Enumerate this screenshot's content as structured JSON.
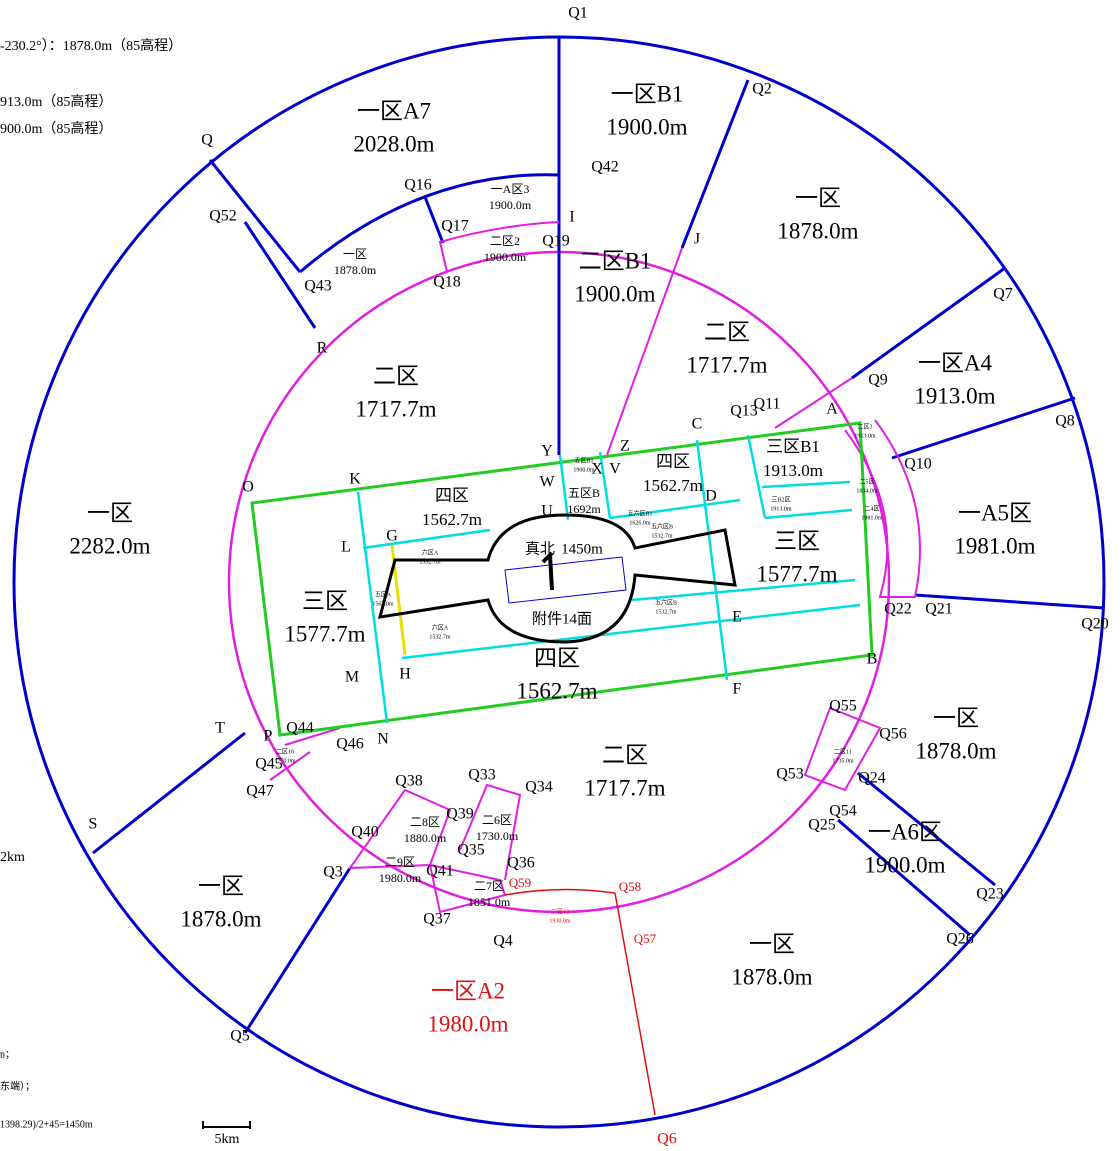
{
  "notes": [
    "-230.2°）：1878.0m（85高程）",
    "913.0m（85高程）",
    "900.0m（85高程）",
    "2km",
    "n；",
    "东端）；",
    "1398.29)/2+45=1450m"
  ],
  "scale_label": "5km",
  "points": [
    "Q1",
    "Q2",
    "Q7",
    "Q8",
    "Q10",
    "Q20",
    "Q21",
    "Q22",
    "Q23",
    "Q26",
    "Q24",
    "Q25",
    "Q54",
    "Q55",
    "Q56",
    "Q53",
    "Q6",
    "Q57",
    "Q58",
    "Q59",
    "Q4",
    "Q37",
    "Q36",
    "Q35",
    "Q41",
    "Q40",
    "Q3",
    "Q38",
    "Q39",
    "Q33",
    "Q34",
    "Q5",
    "S",
    "T",
    "Q45",
    "Q47",
    "Q46",
    "Q44",
    "P",
    "N",
    "M",
    "H",
    "G",
    "L",
    "K",
    "O",
    "R",
    "Q43",
    "Q52",
    "Q",
    "Q16",
    "Q17",
    "Q18",
    "Q19",
    "I",
    "Q42",
    "J",
    "Y",
    "W",
    "U",
    "Z",
    "X",
    "V",
    "C",
    "D",
    "E",
    "F",
    "B",
    "A",
    "Q11",
    "Q13",
    "Q9"
  ],
  "zones": [
    {
      "name": "一区A7",
      "height": "2028.0m"
    },
    {
      "name": "一区B1",
      "height": "1900.0m"
    },
    {
      "name": "一区",
      "height": "1878.0m"
    },
    {
      "name": "二区B1",
      "height": "1900.0m"
    },
    {
      "name": "二区",
      "height": "1717.7m"
    },
    {
      "name": "一区A4",
      "height": "1913.0m"
    },
    {
      "name": "二区",
      "height": "1717.7m"
    },
    {
      "name": "一区",
      "height": "2282.0m"
    },
    {
      "name": "一A5区",
      "height": "1981.0m"
    },
    {
      "name": "三区",
      "height": "1577.7m"
    },
    {
      "name": "三区",
      "height": "1577.7m"
    },
    {
      "name": "四区",
      "height": "1562.7m"
    },
    {
      "name": "四区",
      "height": "1562.7m"
    },
    {
      "name": "二区",
      "height": "1717.7m"
    },
    {
      "name": "一区",
      "height": "1878.0m"
    },
    {
      "name": "一A6区",
      "height": "1900.0m"
    },
    {
      "name": "一区",
      "height": "1878.0m"
    },
    {
      "name": "一区A2",
      "height": "1980.0m"
    },
    {
      "name": "一区",
      "height": "1878.0m"
    },
    {
      "name": "三区B1",
      "height": "1913.0m"
    },
    {
      "name": "四区",
      "height": "1562.7m"
    }
  ],
  "small_zones": [
    {
      "name": "一A区3",
      "height": "1900.0m"
    },
    {
      "name": "二区2",
      "height": "1900.0m"
    },
    {
      "name": "一区",
      "height": "1878.0m"
    },
    {
      "name": "二8区",
      "height": "1880.0m"
    },
    {
      "name": "二9区",
      "height": "1980.0m"
    },
    {
      "name": "二6区",
      "height": "1730.0m"
    },
    {
      "name": "二7区",
      "height": "1851.0m"
    },
    {
      "name": "二区12",
      "height": "1930.0m"
    },
    {
      "name": "二区10",
      "height": "1770.0m"
    },
    {
      "name": "二区11",
      "height": "1735.0m"
    },
    {
      "name": "二区3",
      "height": "1913.0m"
    },
    {
      "name": "五区B1",
      "height": "1900.0m"
    },
    {
      "name": "五区B",
      "height": "1692m"
    },
    {
      "name": "三B2区",
      "height": "1913.0m"
    },
    {
      "name": "二5区",
      "height": "1834.0m"
    },
    {
      "name": "二4区",
      "height": "1981.0m"
    },
    {
      "name": "六区A",
      "height": "1532.7m"
    },
    {
      "name": "五区A",
      "height": "1563.0m"
    },
    {
      "name": "六区A",
      "height": "1532.7m"
    },
    {
      "name": "五六区B",
      "height": "1532.7m"
    },
    {
      "name": "五六区B",
      "height": "1532.7m"
    },
    {
      "name": "五六区B1",
      "height": "1626.0m"
    }
  ],
  "runway": {
    "north": "真北",
    "length": "1450m",
    "surface": "附件14面"
  }
}
